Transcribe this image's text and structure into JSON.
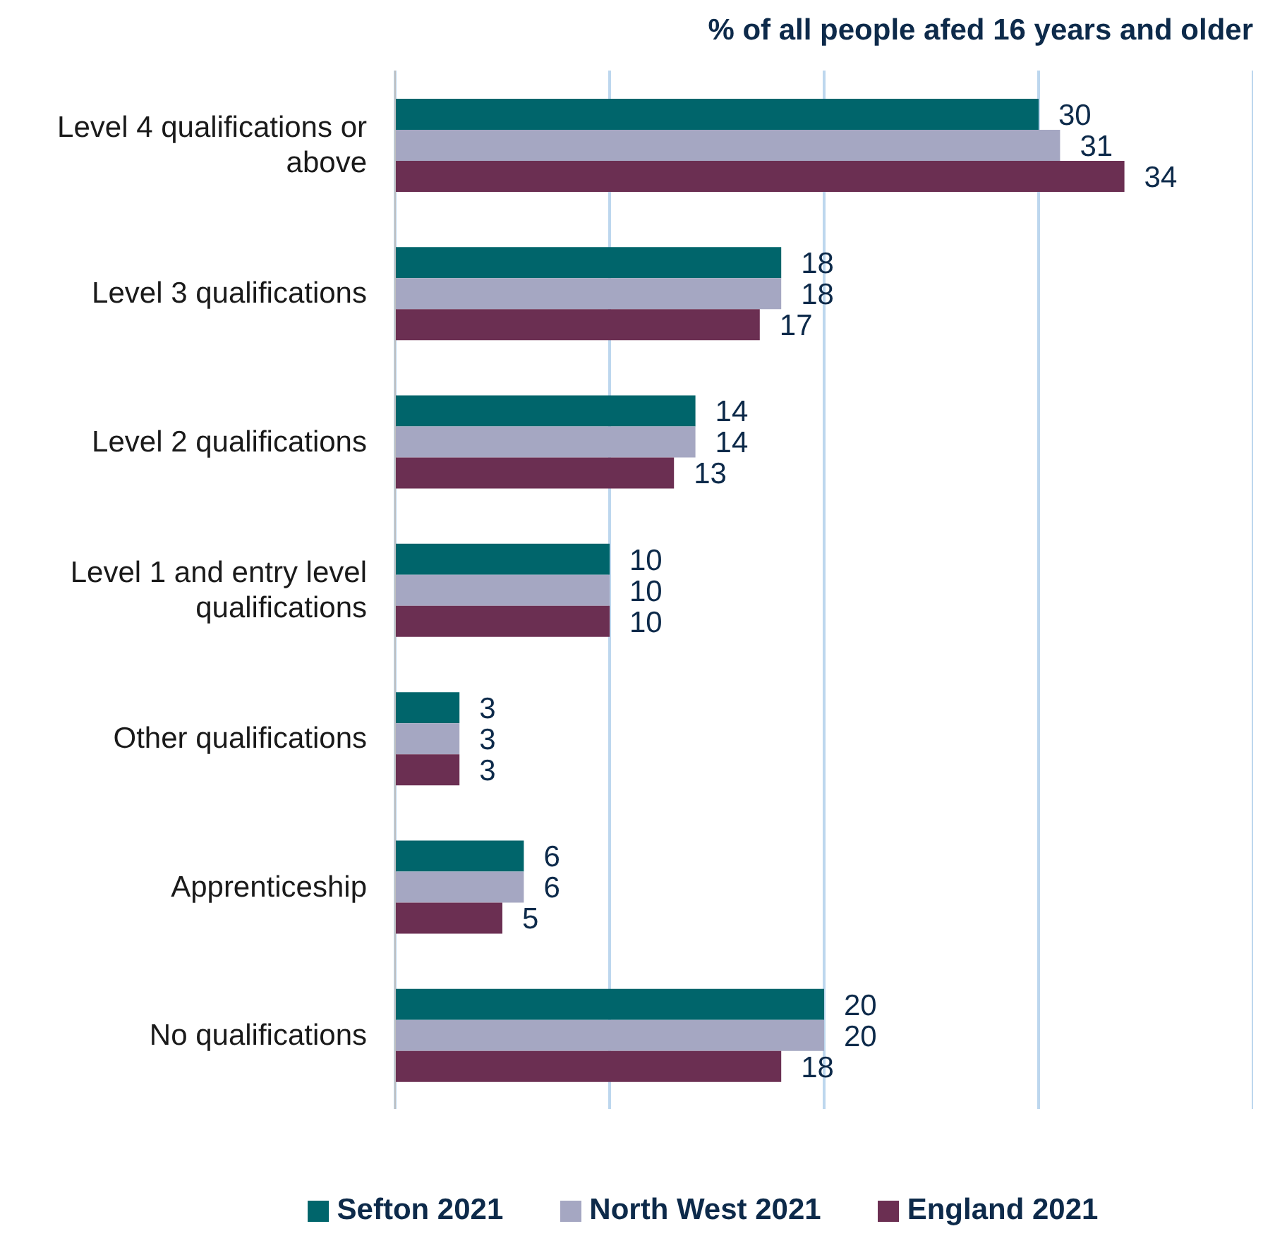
{
  "chart_data": {
    "type": "bar",
    "orientation": "horizontal",
    "title": "% of all people afed 16 years and older",
    "categories": [
      "Level 4 qualifications or above",
      "Level 3 qualifications",
      "Level 2 qualifications",
      "Level 1 and entry level qualifications",
      "Other qualifications",
      "Apprenticeship",
      "No qualifications"
    ],
    "series": [
      {
        "name": "Sefton 2021",
        "color": "#00656b",
        "values": [
          30,
          18,
          14,
          10,
          3,
          6,
          20
        ]
      },
      {
        "name": "North West 2021",
        "color": "#a5a7c2",
        "values": [
          31,
          18,
          14,
          10,
          3,
          6,
          20
        ]
      },
      {
        "name": "England 2021",
        "color": "#6b2f52",
        "values": [
          34,
          17,
          13,
          10,
          3,
          5,
          18
        ]
      }
    ],
    "xlim": [
      0,
      40
    ],
    "xticks": [
      {
        "value": 0,
        "label": null
      },
      {
        "value": 10,
        "label": null
      },
      {
        "value": 20,
        "label": null
      },
      {
        "value": 30,
        "label": null
      },
      {
        "value": 40,
        "label": null
      }
    ],
    "tick_labels": "y",
    "grid": "x",
    "legend": "bottom",
    "data_labels": true
  }
}
